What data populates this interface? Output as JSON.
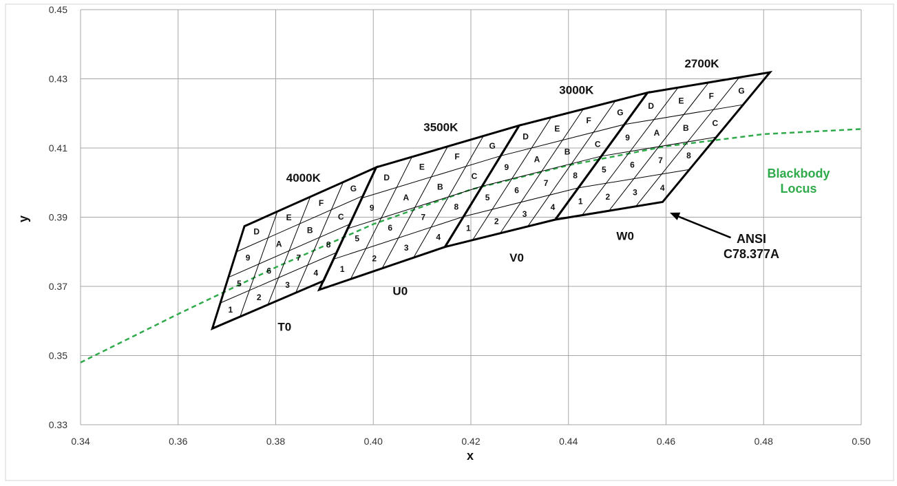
{
  "chart_data": {
    "type": "line",
    "xlabel": "x",
    "ylabel": "y",
    "xlim": [
      0.34,
      0.5
    ],
    "ylim": [
      0.33,
      0.45
    ],
    "x_ticks": [
      "0.34",
      "0.36",
      "0.38",
      "0.40",
      "0.42",
      "0.44",
      "0.46",
      "0.48",
      "0.50"
    ],
    "y_ticks": [
      "0.33",
      "0.35",
      "0.37",
      "0.39",
      "0.41",
      "0.43",
      "0.45"
    ],
    "grid": true,
    "colors": {
      "locus": "#2eaa4a",
      "outline": "#000000",
      "grid": "#a6a6a6"
    },
    "blackbody_locus": {
      "name": "Blackbody Locus",
      "name_lines": [
        "Blackbody",
        "Locus"
      ],
      "points": [
        [
          0.34,
          0.348
        ],
        [
          0.36,
          0.362
        ],
        [
          0.38,
          0.3755
        ],
        [
          0.4,
          0.388
        ],
        [
          0.42,
          0.398
        ],
        [
          0.44,
          0.405
        ],
        [
          0.46,
          0.4105
        ],
        [
          0.48,
          0.414
        ],
        [
          0.5,
          0.4155
        ]
      ]
    },
    "quadrangles": [
      {
        "cct": "4000K",
        "sub": "T0",
        "vertices": [
          [
            0.3736,
            0.3874
          ],
          [
            0.4006,
            0.4044
          ],
          [
            0.3898,
            0.3716
          ],
          [
            0.367,
            0.3578
          ]
        ]
      },
      {
        "cct": "3500K",
        "sub": "U0",
        "vertices": [
          [
            0.4006,
            0.4044
          ],
          [
            0.4299,
            0.4165
          ],
          [
            0.4147,
            0.3814
          ],
          [
            0.3889,
            0.369
          ]
        ]
      },
      {
        "cct": "3000K",
        "sub": "V0",
        "vertices": [
          [
            0.4299,
            0.4165
          ],
          [
            0.4562,
            0.426
          ],
          [
            0.4373,
            0.3893
          ],
          [
            0.4147,
            0.3814
          ]
        ]
      },
      {
        "cct": "2700K",
        "sub": "W0",
        "vertices": [
          [
            0.4562,
            0.426
          ],
          [
            0.4813,
            0.4319
          ],
          [
            0.4593,
            0.3944
          ],
          [
            0.4373,
            0.3893
          ]
        ]
      }
    ],
    "bin_labels": [
      [
        "D",
        "E",
        "F",
        "G"
      ],
      [
        "9",
        "A",
        "B",
        "C"
      ],
      [
        "5",
        "6",
        "7",
        "8"
      ],
      [
        "1",
        "2",
        "3",
        "4"
      ]
    ],
    "annotation": {
      "lines": [
        "ANSI",
        "C78.377A"
      ],
      "target": [
        0.4605,
        0.3915
      ],
      "text_at": [
        0.4775,
        0.3825
      ]
    }
  }
}
